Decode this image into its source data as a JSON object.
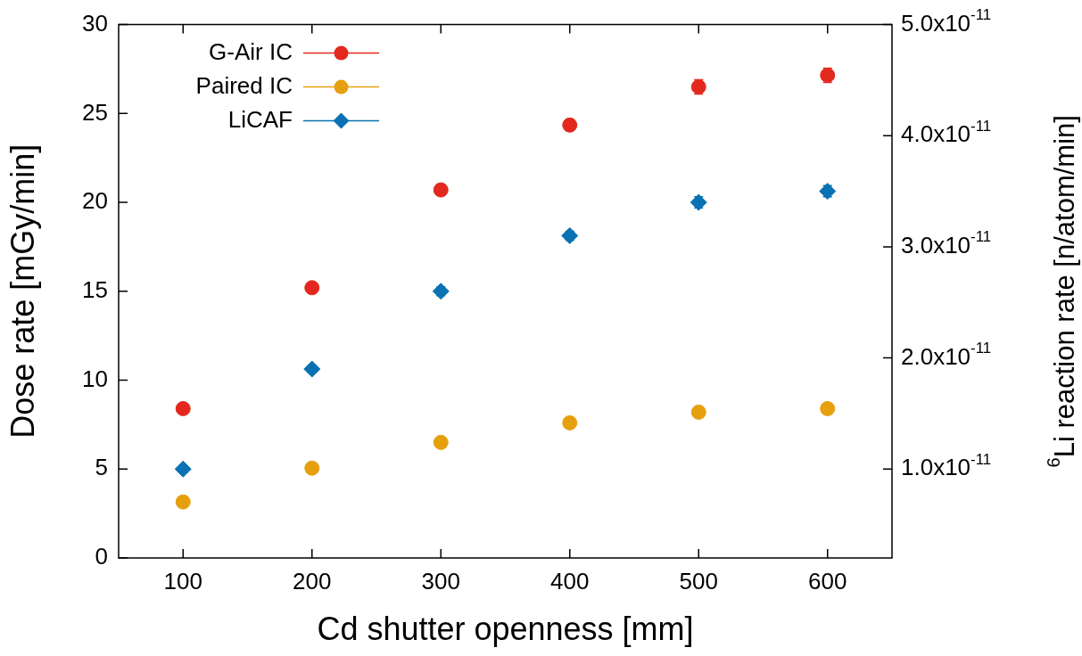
{
  "chart_data": {
    "type": "scatter",
    "xlabel": "Cd shutter openness [mm]",
    "ylabel": "Dose rate [mGy/min]",
    "y2label": "$^{6}$Li reaction rate [n/atom/min]",
    "x": [
      100,
      200,
      300,
      400,
      500,
      600
    ],
    "xlim": [
      50,
      650
    ],
    "xticks": [
      100,
      200,
      300,
      400,
      500,
      600
    ],
    "ylim": [
      0,
      30
    ],
    "yticks": [
      0,
      5,
      10,
      15,
      20,
      25,
      30
    ],
    "y2lim": [
      2e-12,
      5e-11
    ],
    "y2ticks": [
      {
        "value": 1e-11,
        "label": "1.0x10$^{-11}$"
      },
      {
        "value": 2e-11,
        "label": "2.0x10$^{-11}$"
      },
      {
        "value": 3e-11,
        "label": "3.0x10$^{-11}$"
      },
      {
        "value": 4e-11,
        "label": "4.0x10$^{-11}$"
      },
      {
        "value": 5e-11,
        "label": "5.0x10$^{-11}$"
      }
    ],
    "grid": false,
    "legend": "top left",
    "series": [
      {
        "name": "G-Air IC",
        "color": "#e3281e",
        "marker": "circle",
        "values": [
          8.4,
          15.2,
          20.7,
          24.35,
          26.5,
          27.15
        ],
        "errors": [
          null,
          null,
          0.3,
          0.3,
          0.4,
          0.4
        ]
      },
      {
        "name": "Paired IC",
        "color": "#e6a00e",
        "marker": "circle",
        "values": [
          3.15,
          5.05,
          6.5,
          7.6,
          8.2,
          8.4
        ],
        "errors": [
          null,
          null,
          null,
          0.3,
          0.3,
          0.3
        ]
      },
      {
        "name": "LiCAF",
        "color": "#0a72b2",
        "marker": "diamond",
        "axis": "y2",
        "values": [
          1e-11,
          1.9e-11,
          2.6e-11,
          3.1e-11,
          3.4e-11,
          3.5e-11
        ],
        "errors": [
          3e-13,
          3e-13,
          4e-13,
          4e-13,
          5e-13,
          5e-13
        ]
      }
    ]
  }
}
